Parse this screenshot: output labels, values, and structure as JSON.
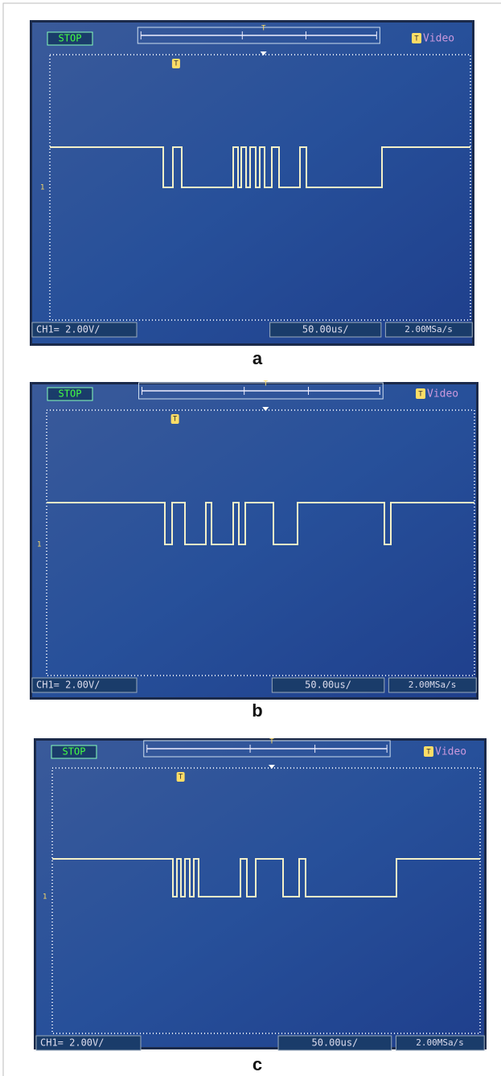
{
  "panels": [
    {
      "label": "a",
      "status": "STOP",
      "trigger_mode": "Video",
      "trigger_marker": "T",
      "channel_marker": "1",
      "channel": "CH1= 2.00V/",
      "timebase": "50.00us/",
      "sample_rate": "2.00MSa/s"
    },
    {
      "label": "b",
      "status": "STOP",
      "trigger_mode": "Video",
      "trigger_marker": "T",
      "channel_marker": "1",
      "channel": "CH1= 2.00V/",
      "timebase": "50.00us/",
      "sample_rate": "2.00MSa/s"
    },
    {
      "label": "c",
      "status": "STOP",
      "trigger_mode": "Video",
      "trigger_marker": "T",
      "channel_marker": "1",
      "channel": "CH1= 2.00V/",
      "timebase": "50.00us/",
      "sample_rate": "2.00MSa/s"
    }
  ]
}
